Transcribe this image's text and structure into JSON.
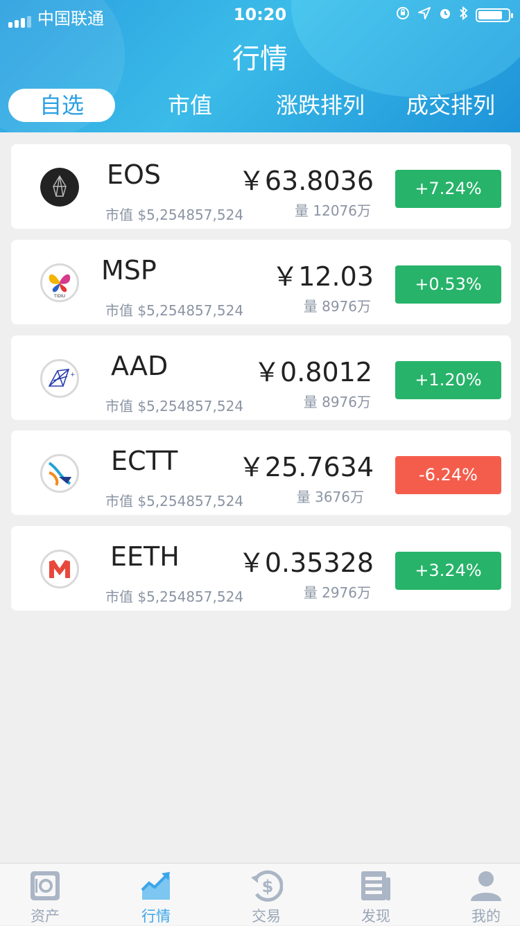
{
  "status_bar": {
    "carrier": "中国联通",
    "time": "10:20"
  },
  "header": {
    "title": "行情"
  },
  "tabs": [
    {
      "label": "自选",
      "active": true
    },
    {
      "label": "市值",
      "active": false
    },
    {
      "label": "涨跌排列",
      "active": false
    },
    {
      "label": "成交排列",
      "active": false
    }
  ],
  "coins": [
    {
      "name": "EOS",
      "cap": "市值 $5,254857,524",
      "price": "￥63.8036",
      "volume": "量 12076万",
      "change": "+7.24%",
      "trend": "up"
    },
    {
      "name": "MSP",
      "cap": "市值 $5,254857,524",
      "price": "￥12.03",
      "volume": "量 8976万",
      "change": "+0.53%",
      "trend": "up"
    },
    {
      "name": "AAD",
      "cap": "市值 $5,254857,524",
      "price": "￥0.8012",
      "volume": "量 8976万",
      "change": "+1.20%",
      "trend": "up"
    },
    {
      "name": "ECTT",
      "cap": "市值 $5,254857,524",
      "price": "￥25.7634",
      "volume": "量 3676万",
      "change": "-6.24%",
      "trend": "down"
    },
    {
      "name": "EETH",
      "cap": "市值 $5,254857,524",
      "price": "￥0.35328",
      "volume": "量 2976万",
      "change": "+3.24%",
      "trend": "up"
    }
  ],
  "colors": {
    "up": "#27b36a",
    "down": "#f45d4c",
    "accent": "#3aa5ea",
    "inactive": "#9aa6b7"
  },
  "tabbar": [
    {
      "label": "资产",
      "icon": "safe-icon",
      "active": false
    },
    {
      "label": "行情",
      "icon": "trend-chart-icon",
      "active": true
    },
    {
      "label": "交易",
      "icon": "dollar-exchange-icon",
      "active": false
    },
    {
      "label": "发现",
      "icon": "newspaper-icon",
      "active": false
    },
    {
      "label": "我的",
      "icon": "user-icon",
      "active": false
    }
  ]
}
